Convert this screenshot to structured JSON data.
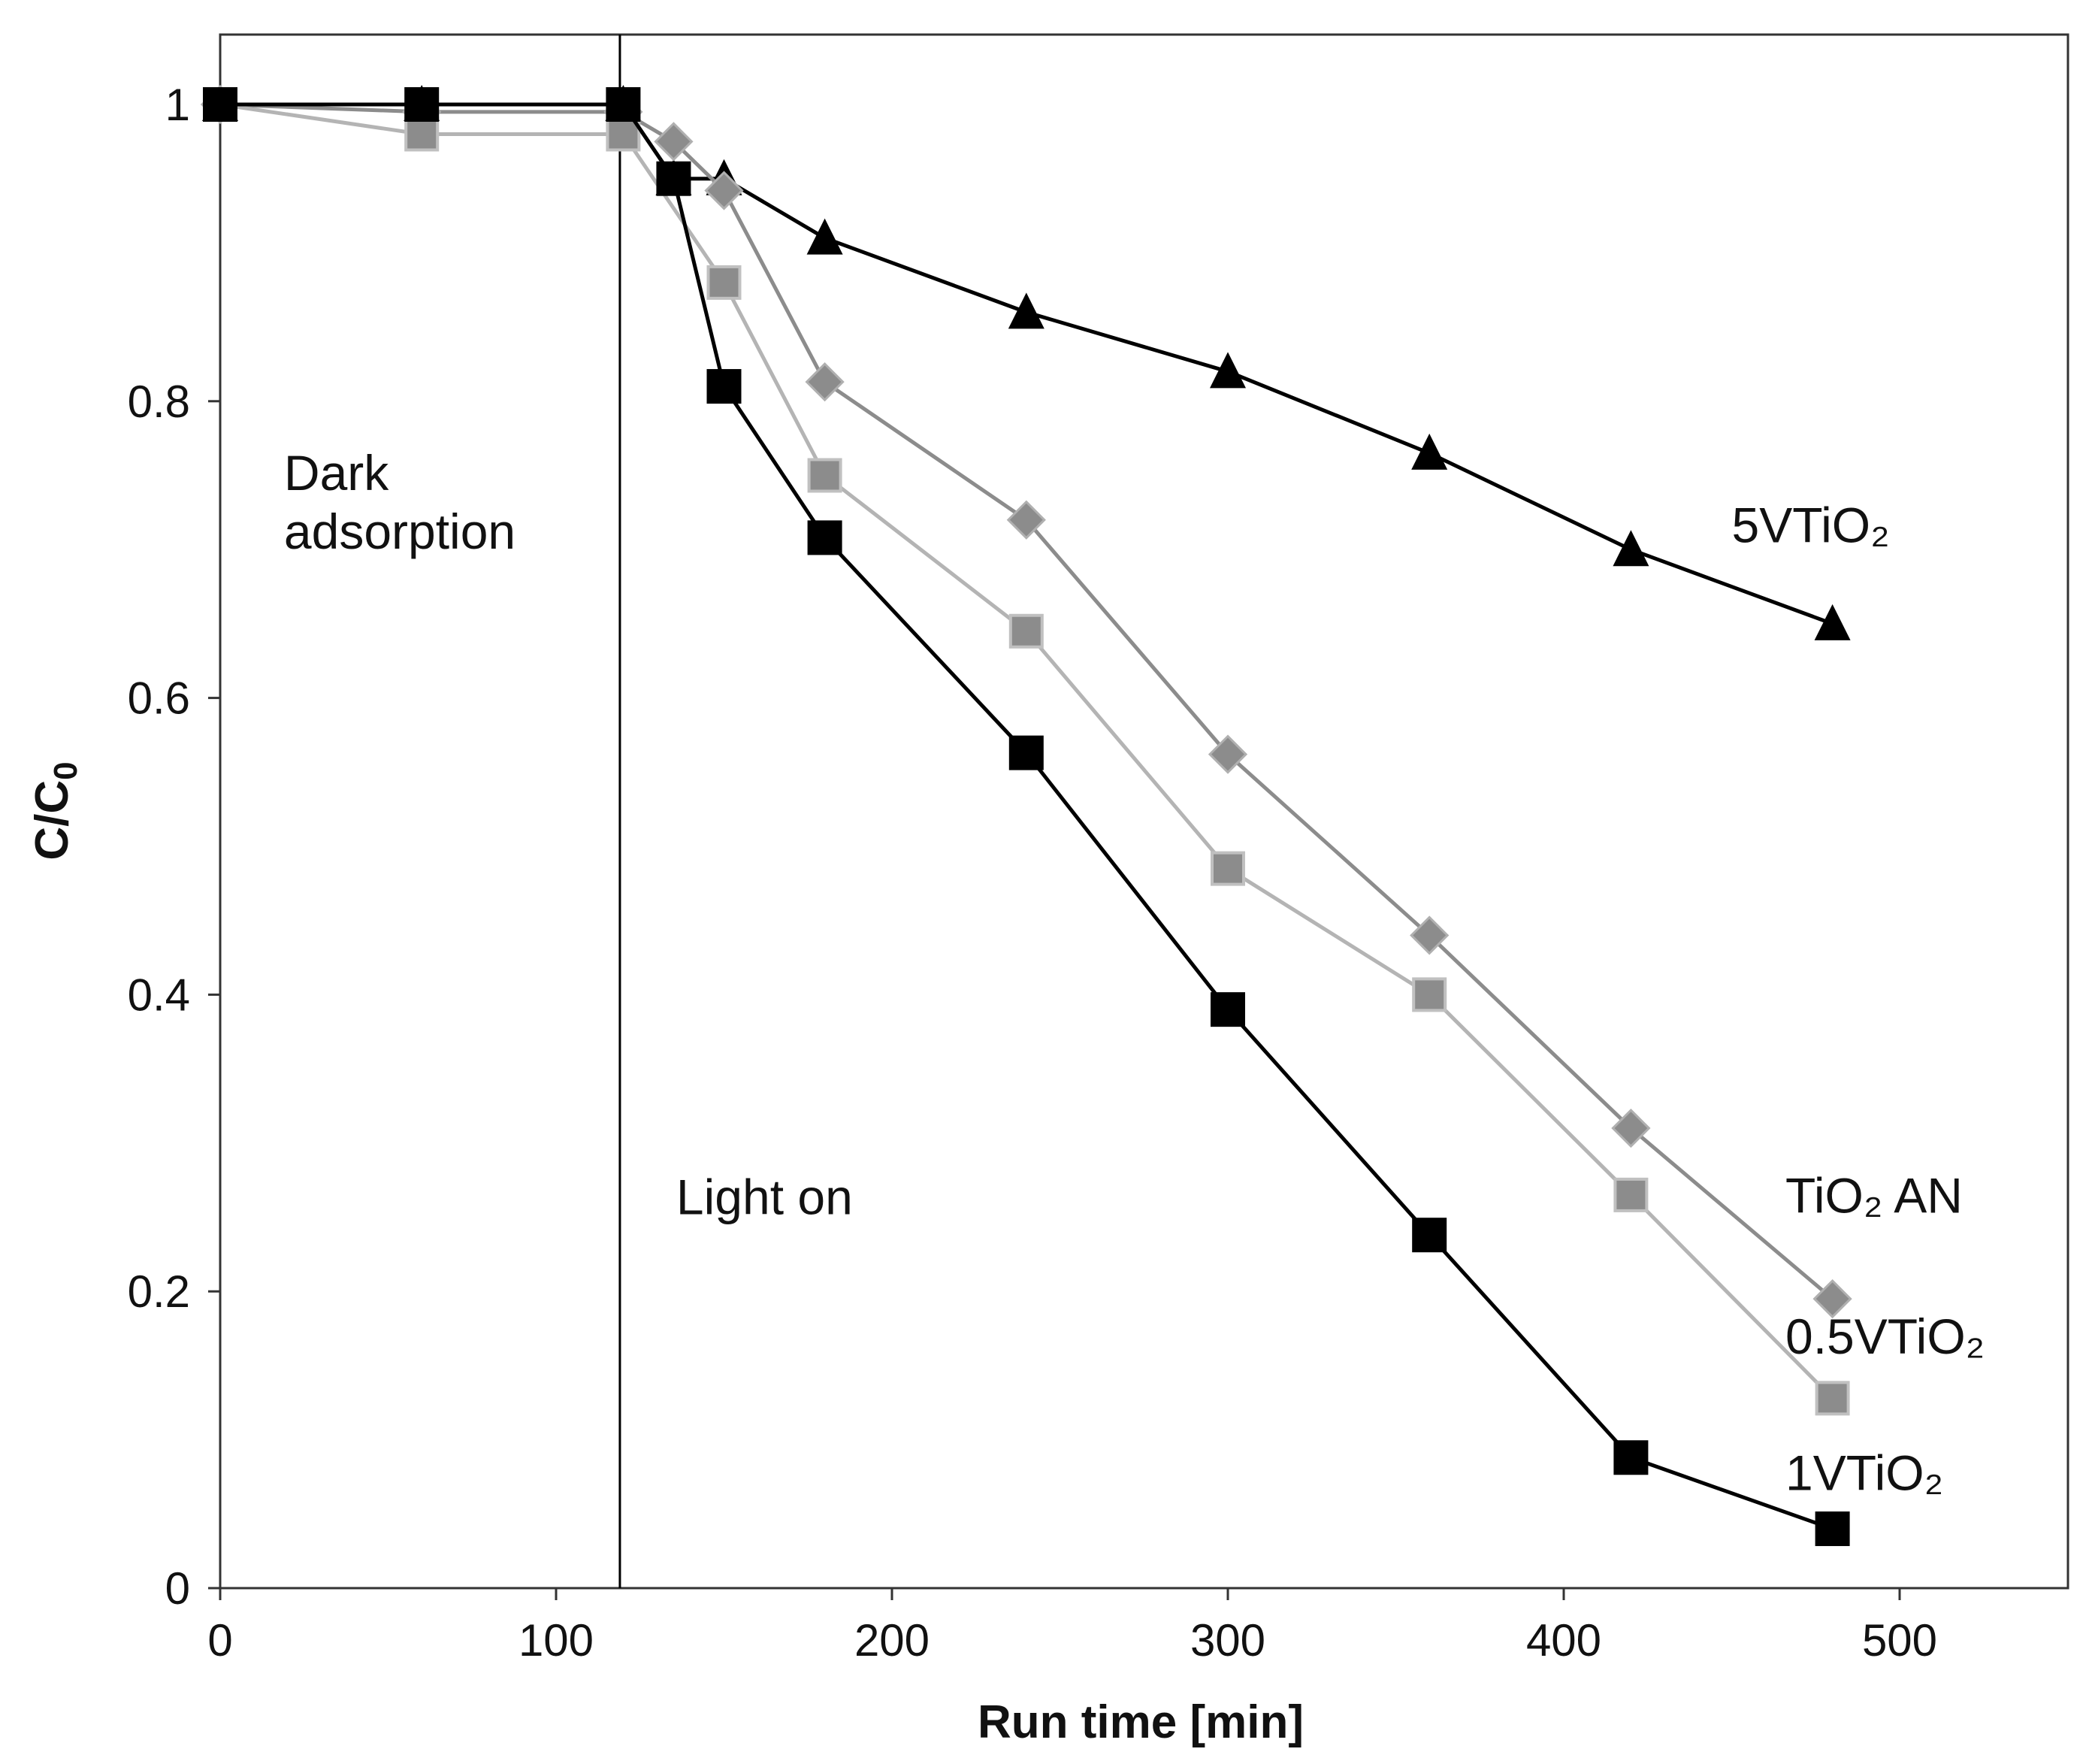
{
  "chart_data": {
    "type": "line",
    "title": "",
    "xlabel": "Run time [min]",
    "ylabel_main": "C/C",
    "ylabel_sub": "0",
    "xlim": [
      0,
      550
    ],
    "ylim": [
      0,
      1.05
    ],
    "xticks": [
      0,
      100,
      200,
      300,
      400,
      500
    ],
    "xtick_labels": [
      "0",
      "100",
      "200",
      "300",
      "400",
      "500"
    ],
    "yticks": [
      0,
      0.2,
      0.4,
      0.6,
      0.8,
      1
    ],
    "ytick_labels": [
      "0",
      "0.2",
      "0.4",
      "0.6",
      "0.8",
      "1"
    ],
    "grid": false,
    "legend": "inline labels at series ends",
    "vertical_line": {
      "x": 119,
      "label": "Light on"
    },
    "annotations": [
      {
        "lines": [
          "Dark",
          "adsorption"
        ],
        "x": 19,
        "y": 0.74
      }
    ],
    "series": [
      {
        "name": "5VTiO₂",
        "color": "#000000",
        "marker": "triangle",
        "x": [
          0,
          60,
          120,
          135,
          150,
          180,
          240,
          300,
          360,
          420,
          480
        ],
        "y": [
          1.0,
          1.0,
          1.0,
          0.95,
          0.95,
          0.91,
          0.86,
          0.82,
          0.765,
          0.7,
          0.65
        ]
      },
      {
        "name": "TiO₂ AN",
        "color": "#8c8c8c",
        "marker": "diamond",
        "x": [
          0,
          60,
          120,
          135,
          150,
          180,
          240,
          300,
          360,
          420,
          480
        ],
        "y": [
          1.0,
          0.995,
          0.995,
          0.975,
          0.942,
          0.813,
          0.72,
          0.562,
          0.44,
          0.31,
          0.195
        ]
      },
      {
        "name": "0.5VTiO₂",
        "color": "#b4b4b4",
        "marker": "square-gray",
        "x": [
          0,
          60,
          120,
          150,
          180,
          240,
          300,
          360,
          420,
          480
        ],
        "y": [
          1.0,
          0.98,
          0.98,
          0.88,
          0.75,
          0.645,
          0.485,
          0.4,
          0.265,
          0.128
        ]
      },
      {
        "name": "1VTiO₂",
        "color": "#000000",
        "marker": "square",
        "x": [
          0,
          60,
          120,
          135,
          150,
          180,
          240,
          300,
          360,
          420,
          480
        ],
        "y": [
          1.0,
          1.0,
          1.0,
          0.95,
          0.81,
          0.708,
          0.563,
          0.39,
          0.238,
          0.088,
          0.04
        ]
      }
    ],
    "series_labels": [
      {
        "text": "5VTiO₂",
        "x": 450,
        "y": 0.705
      },
      {
        "text": "TiO₂ AN",
        "x": 466,
        "y": 0.253
      },
      {
        "text": "0.5VTiO₂",
        "x": 466,
        "y": 0.158
      },
      {
        "text": "1VTiO₂",
        "x": 466,
        "y": 0.066
      }
    ]
  }
}
